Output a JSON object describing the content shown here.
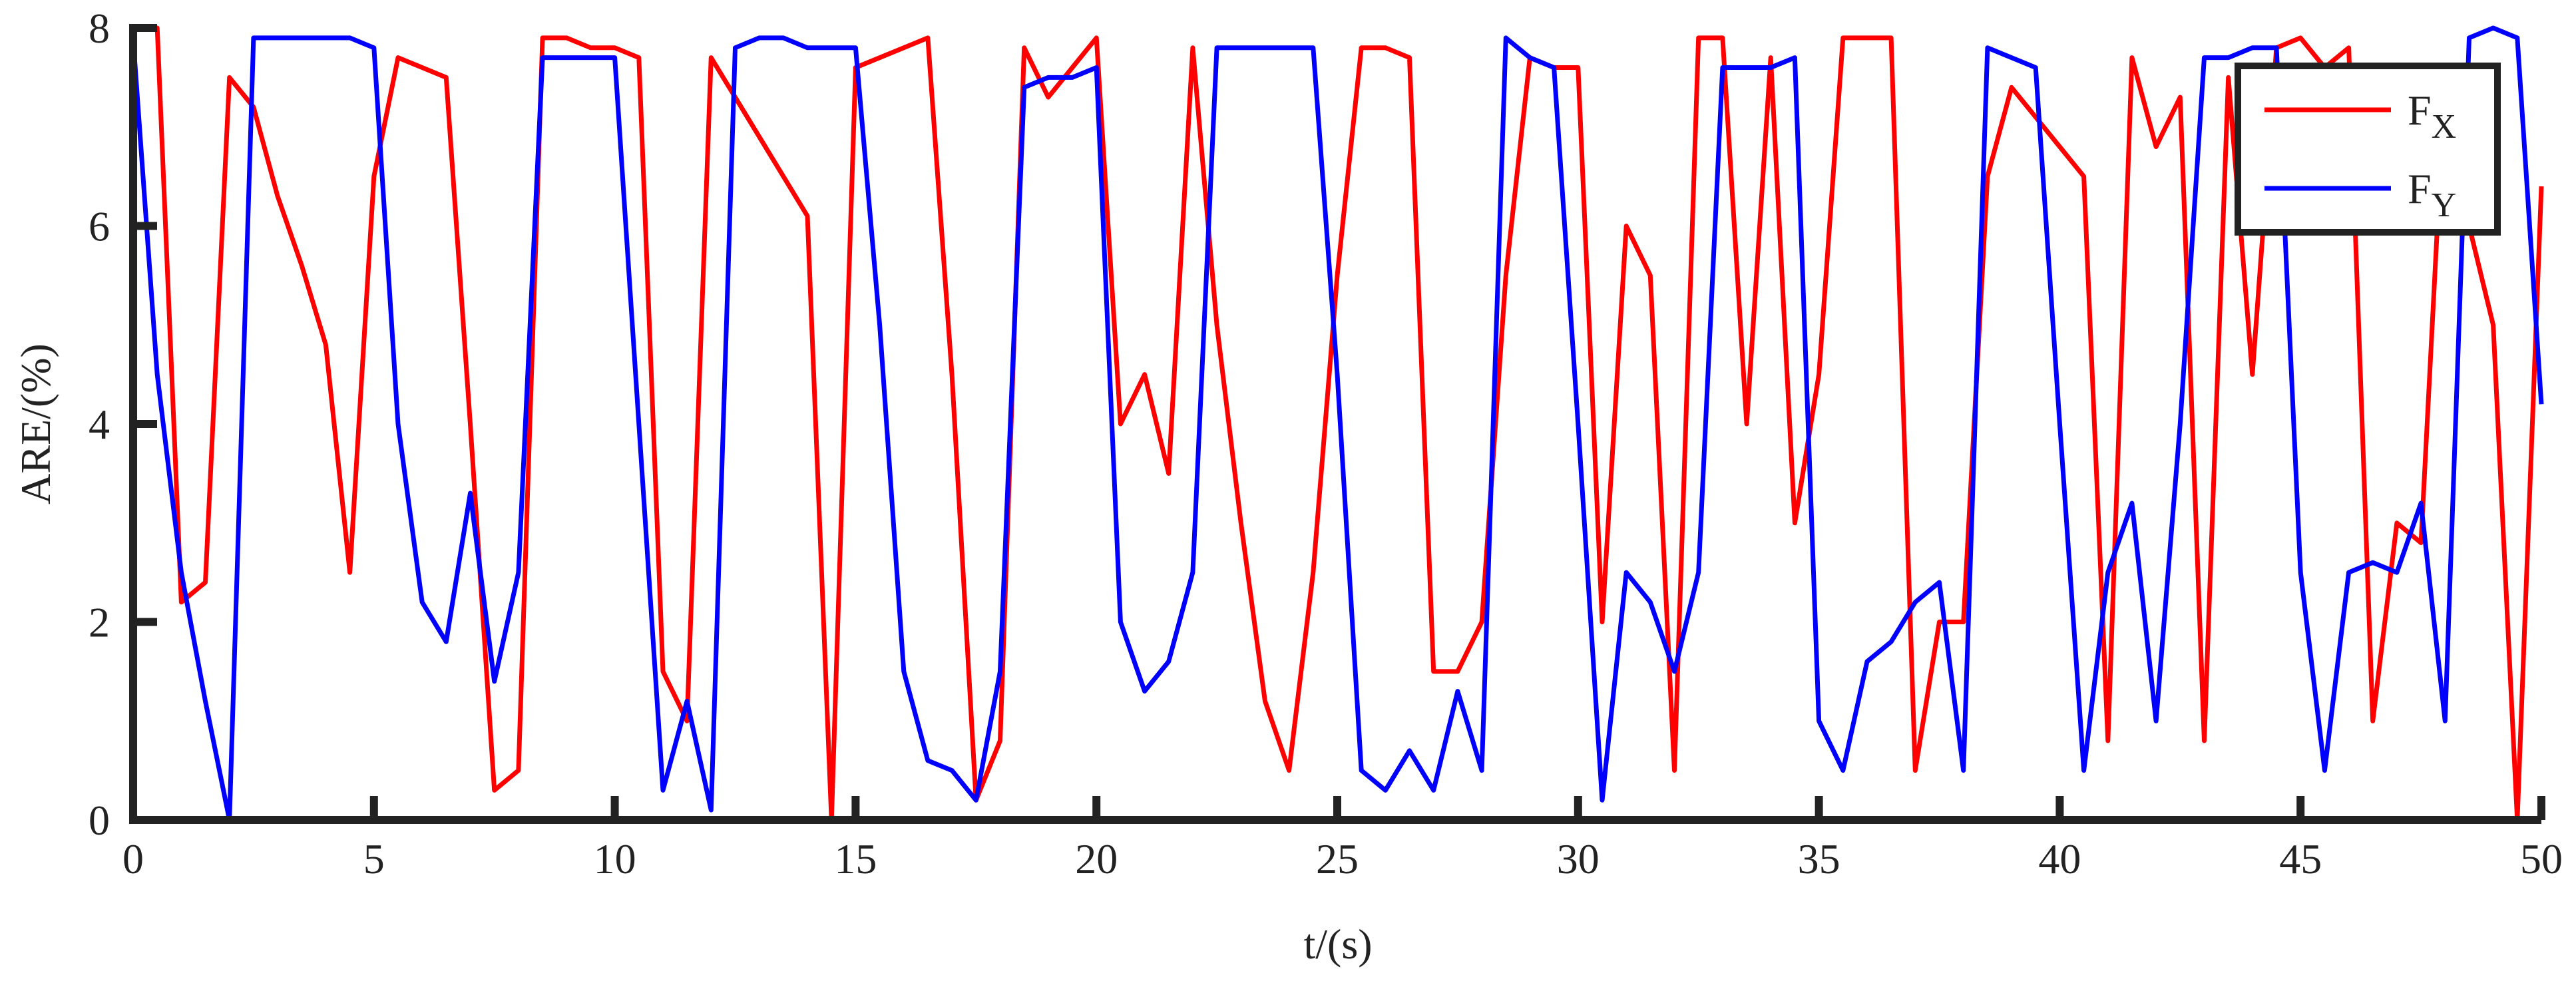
{
  "chart_data": {
    "type": "line",
    "xlabel": "t/(s)",
    "ylabel": "ARE/(%)",
    "x": [
      0,
      0.5,
      1,
      1.5,
      2,
      2.5,
      3,
      3.5,
      4,
      4.5,
      5,
      5.5,
      6,
      6.5,
      7,
      7.5,
      8,
      8.5,
      9,
      9.5,
      10,
      10.5,
      11,
      11.5,
      12,
      12.5,
      13,
      13.5,
      14,
      14.5,
      15,
      15.5,
      16,
      16.5,
      17,
      17.5,
      18,
      18.5,
      19,
      19.5,
      20,
      20.5,
      21,
      21.5,
      22,
      22.5,
      23,
      23.5,
      24,
      24.5,
      25,
      25.5,
      26,
      26.5,
      27,
      27.5,
      28,
      28.5,
      29,
      29.5,
      30,
      30.5,
      31,
      31.5,
      32,
      32.5,
      33,
      33.5,
      34,
      34.5,
      35,
      35.5,
      36,
      36.5,
      37,
      37.5,
      38,
      38.5,
      39,
      39.5,
      40,
      40.5,
      41,
      41.5,
      42,
      42.5,
      43,
      43.5,
      44,
      44.5,
      45,
      45.5,
      46,
      46.5,
      47,
      47.5,
      48,
      48.5,
      49,
      49.5,
      50
    ],
    "series": [
      {
        "name": "FX",
        "color": "#ff0000",
        "values": [
          8,
          8,
          2.2,
          2.4,
          7.5,
          7.2,
          6.3,
          5.6,
          4.8,
          2.5,
          6.5,
          7.7,
          7.6,
          7.5,
          4,
          0.3,
          0.5,
          7.9,
          7.9,
          7.8,
          7.8,
          7.7,
          1.5,
          1.0,
          7.7,
          7.3,
          6.9,
          6.5,
          6.1,
          0,
          7.6,
          7.7,
          7.8,
          7.9,
          4.5,
          0.2,
          0.8,
          7.8,
          7.3,
          7.6,
          7.9,
          4.0,
          4.5,
          3.5,
          7.8,
          5,
          3,
          1.2,
          0.5,
          2.5,
          5.5,
          7.8,
          7.8,
          7.7,
          1.5,
          1.5,
          2,
          5.5,
          7.7,
          7.6,
          7.6,
          2,
          6,
          5.5,
          0.5,
          7.9,
          7.9,
          4,
          7.7,
          3,
          4.5,
          7.9,
          7.9,
          7.9,
          0.5,
          2,
          2,
          6.5,
          7.4,
          7.1,
          6.8,
          6.5,
          0.8,
          7.7,
          6.8,
          7.3,
          0.8,
          7.5,
          4.5,
          7.8,
          7.9,
          7.6,
          7.8,
          1,
          3,
          2.8,
          7.5,
          6,
          5,
          0,
          6.4
        ]
      },
      {
        "name": "FY",
        "color": "#0000ff",
        "values": [
          7.9,
          4.5,
          2.5,
          1.2,
          0,
          7.9,
          7.9,
          7.9,
          7.9,
          7.9,
          7.8,
          4,
          2.2,
          1.8,
          3.3,
          1.4,
          2.5,
          7.7,
          7.7,
          7.7,
          7.7,
          4,
          0.3,
          1.2,
          0.1,
          7.8,
          7.9,
          7.9,
          7.8,
          7.8,
          7.8,
          5,
          1.5,
          0.6,
          0.5,
          0.2,
          1.5,
          7.4,
          7.5,
          7.5,
          7.6,
          2,
          1.3,
          1.6,
          2.5,
          7.8,
          7.8,
          7.8,
          7.8,
          7.8,
          4.5,
          0.5,
          0.3,
          0.7,
          0.3,
          1.3,
          0.5,
          7.9,
          7.7,
          7.6,
          4,
          0.2,
          2.5,
          2.2,
          1.5,
          2.5,
          7.6,
          7.6,
          7.6,
          7.7,
          1,
          0.5,
          1.6,
          1.8,
          2.2,
          2.4,
          0.5,
          7.8,
          7.7,
          7.6,
          4,
          0.5,
          2.5,
          3.2,
          1,
          4,
          7.7,
          7.7,
          7.8,
          7.8,
          2.5,
          0.5,
          2.5,
          2.6,
          2.5,
          3.2,
          1,
          7.9,
          8,
          7.9,
          4.2
        ]
      }
    ],
    "xlim": [
      0,
      50
    ],
    "xticks": [
      0,
      5,
      10,
      15,
      20,
      25,
      30,
      35,
      40,
      45,
      50
    ],
    "ylim": [
      0,
      8
    ],
    "yticks": [
      0,
      2,
      4,
      6,
      8
    ],
    "legend": "northeast"
  }
}
